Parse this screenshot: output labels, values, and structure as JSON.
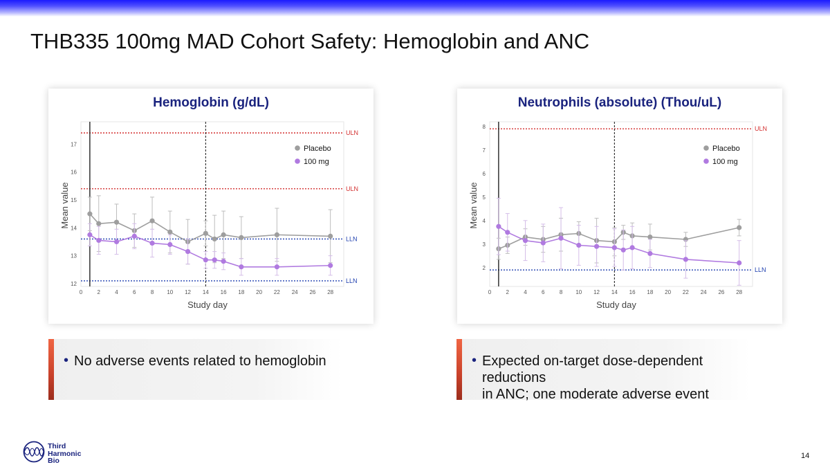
{
  "slide": {
    "title": "THB335 100mg MAD Cohort Safety: Hemoglobin and ANC",
    "page_number": "14",
    "logo_lines": [
      "Third",
      "Harmonic",
      "Bio"
    ],
    "notes": {
      "left": "No adverse events related to hemoglobin",
      "right": [
        "Expected on-target dose-dependent reductions",
        "in ANC; one moderate adverse event"
      ]
    }
  },
  "colors": {
    "placebo": "#9e9e9e",
    "dose": "#b07ae0",
    "uln": "#d32f2f",
    "lln": "#1e3faf",
    "title": "#1a237e"
  },
  "chart_data": [
    {
      "type": "line",
      "title": "Hemoglobin (g/dL)",
      "xlabel": "Study day",
      "ylabel": "Mean value",
      "xlim": [
        0,
        29.5
      ],
      "ylim": [
        11.9,
        17.8
      ],
      "xticks": [
        0,
        2,
        4,
        6,
        8,
        10,
        12,
        14,
        16,
        18,
        20,
        22,
        24,
        26,
        28
      ],
      "yticks": [
        12,
        13,
        14,
        15,
        16,
        17
      ],
      "vlines": [
        {
          "x": 1,
          "style": "solid"
        },
        {
          "x": 14,
          "style": "dashed"
        }
      ],
      "reflines": [
        {
          "y": 17.4,
          "label": "ULN",
          "kind": "uln"
        },
        {
          "y": 15.4,
          "label": "ULN",
          "kind": "uln"
        },
        {
          "y": 13.6,
          "label": "LLN",
          "kind": "lln"
        },
        {
          "y": 12.1,
          "label": "LLN",
          "kind": "lln"
        }
      ],
      "legend": {
        "position": "top-right",
        "entries": [
          "Placebo",
          "100 mg"
        ]
      },
      "series": [
        {
          "name": "Placebo",
          "x": [
            1,
            2,
            4,
            6,
            8,
            10,
            12,
            14,
            15,
            16,
            18,
            22,
            28
          ],
          "values": [
            14.5,
            14.15,
            14.2,
            13.9,
            14.25,
            13.85,
            13.5,
            13.8,
            13.6,
            13.75,
            13.65,
            13.75,
            13.7
          ],
          "err": [
            0.6,
            1.0,
            0.65,
            0.6,
            0.85,
            0.75,
            0.8,
            0.45,
            0.85,
            0.85,
            0.75,
            0.95,
            0.95
          ]
        },
        {
          "name": "100 mg",
          "x": [
            1,
            2,
            4,
            6,
            8,
            10,
            12,
            14,
            15,
            16,
            18,
            22,
            28
          ],
          "values": [
            13.75,
            13.55,
            13.5,
            13.7,
            13.45,
            13.4,
            13.15,
            12.85,
            12.85,
            12.8,
            12.6,
            12.6,
            12.65
          ],
          "err": [
            0.4,
            0.5,
            0.45,
            0.45,
            0.5,
            0.35,
            0.45,
            0.3,
            0.3,
            0.3,
            0.3,
            0.3,
            0.35
          ]
        }
      ]
    },
    {
      "type": "line",
      "title": "Neutrophils (absolute) (Thou/uL)",
      "xlabel": "Study day",
      "ylabel": "Mean value",
      "xlim": [
        0,
        29.5
      ],
      "ylim": [
        1.2,
        8.2
      ],
      "xticks": [
        0,
        2,
        4,
        6,
        8,
        10,
        12,
        14,
        16,
        18,
        20,
        22,
        24,
        26,
        28
      ],
      "yticks": [
        2,
        3,
        4,
        5,
        6,
        7,
        8
      ],
      "vlines": [
        {
          "x": 1,
          "style": "solid"
        },
        {
          "x": 14,
          "style": "dashed"
        }
      ],
      "reflines": [
        {
          "y": 7.9,
          "label": "ULN",
          "kind": "uln"
        },
        {
          "y": 1.9,
          "label": "LLN",
          "kind": "lln"
        }
      ],
      "legend": {
        "position": "top-right",
        "entries": [
          "Placebo",
          "100 mg"
        ]
      },
      "series": [
        {
          "name": "Placebo",
          "x": [
            1,
            2,
            4,
            6,
            8,
            10,
            12,
            14,
            15,
            16,
            18,
            22,
            28
          ],
          "values": [
            2.8,
            2.95,
            3.3,
            3.2,
            3.4,
            3.45,
            3.15,
            3.1,
            3.5,
            3.35,
            3.3,
            3.2,
            3.7
          ],
          "err": [
            0.45,
            0.35,
            0.35,
            0.55,
            0.7,
            0.5,
            0.95,
            0.6,
            0.3,
            0.55,
            0.55,
            0.3,
            0.35
          ]
        },
        {
          "name": "100 mg",
          "x": [
            1,
            2,
            4,
            6,
            8,
            10,
            12,
            14,
            15,
            16,
            18,
            22,
            28
          ],
          "values": [
            3.75,
            3.5,
            3.15,
            3.05,
            3.25,
            2.95,
            2.9,
            2.85,
            2.75,
            2.85,
            2.6,
            2.35,
            2.2
          ],
          "err": [
            1.2,
            0.8,
            0.85,
            0.8,
            1.3,
            0.85,
            0.85,
            0.8,
            0.85,
            0.9,
            0.6,
            0.8,
            0.95
          ]
        }
      ]
    }
  ]
}
